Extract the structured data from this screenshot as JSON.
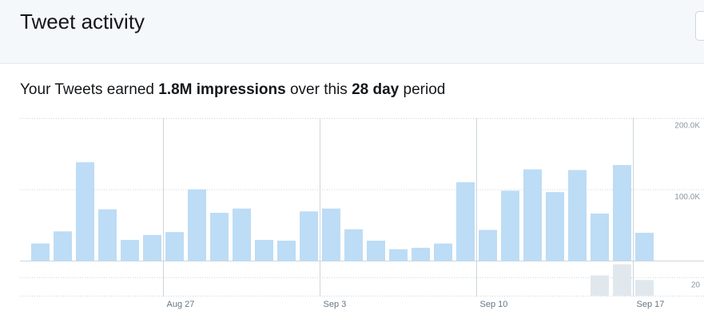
{
  "header": {
    "title": "Tweet activity"
  },
  "summary": {
    "prefix": "Your Tweets earned",
    "impressions": "1.8M impressions",
    "middle": "over this",
    "period": "28 day",
    "suffix": "period"
  },
  "chart_data": [
    {
      "type": "bar",
      "color": "#bddcf5",
      "categories": [
        null,
        null,
        null,
        null,
        null,
        null,
        "Aug 27",
        null,
        null,
        null,
        null,
        null,
        null,
        "Sep 3",
        null,
        null,
        null,
        null,
        null,
        null,
        "Sep 10",
        null,
        null,
        null,
        null,
        null,
        null,
        "Sep 17"
      ],
      "values": [
        24000,
        41000,
        138000,
        72000,
        29000,
        36000,
        40000,
        100000,
        67000,
        73000,
        29000,
        28000,
        69000,
        73000,
        44000,
        28000,
        16000,
        18000,
        24000,
        110000,
        43000,
        98000,
        128000,
        96000,
        127000,
        66000,
        134000,
        39000
      ],
      "ylim": [
        0,
        200000
      ],
      "yticks": [
        {
          "value": 100000,
          "label": "100.0K"
        },
        {
          "value": 200000,
          "label": "200.0K"
        }
      ],
      "grid": true
    },
    {
      "type": "bar",
      "color": "#e1e8ed",
      "values": [
        0,
        0,
        0,
        0,
        0,
        0,
        0,
        0,
        0,
        0,
        0,
        0,
        0,
        0,
        0,
        0,
        0,
        0,
        0,
        0,
        0,
        0,
        0,
        0,
        0,
        22,
        34,
        17
      ],
      "ylim": [
        0,
        38
      ],
      "yticks": [
        20
      ],
      "grid": true
    }
  ]
}
